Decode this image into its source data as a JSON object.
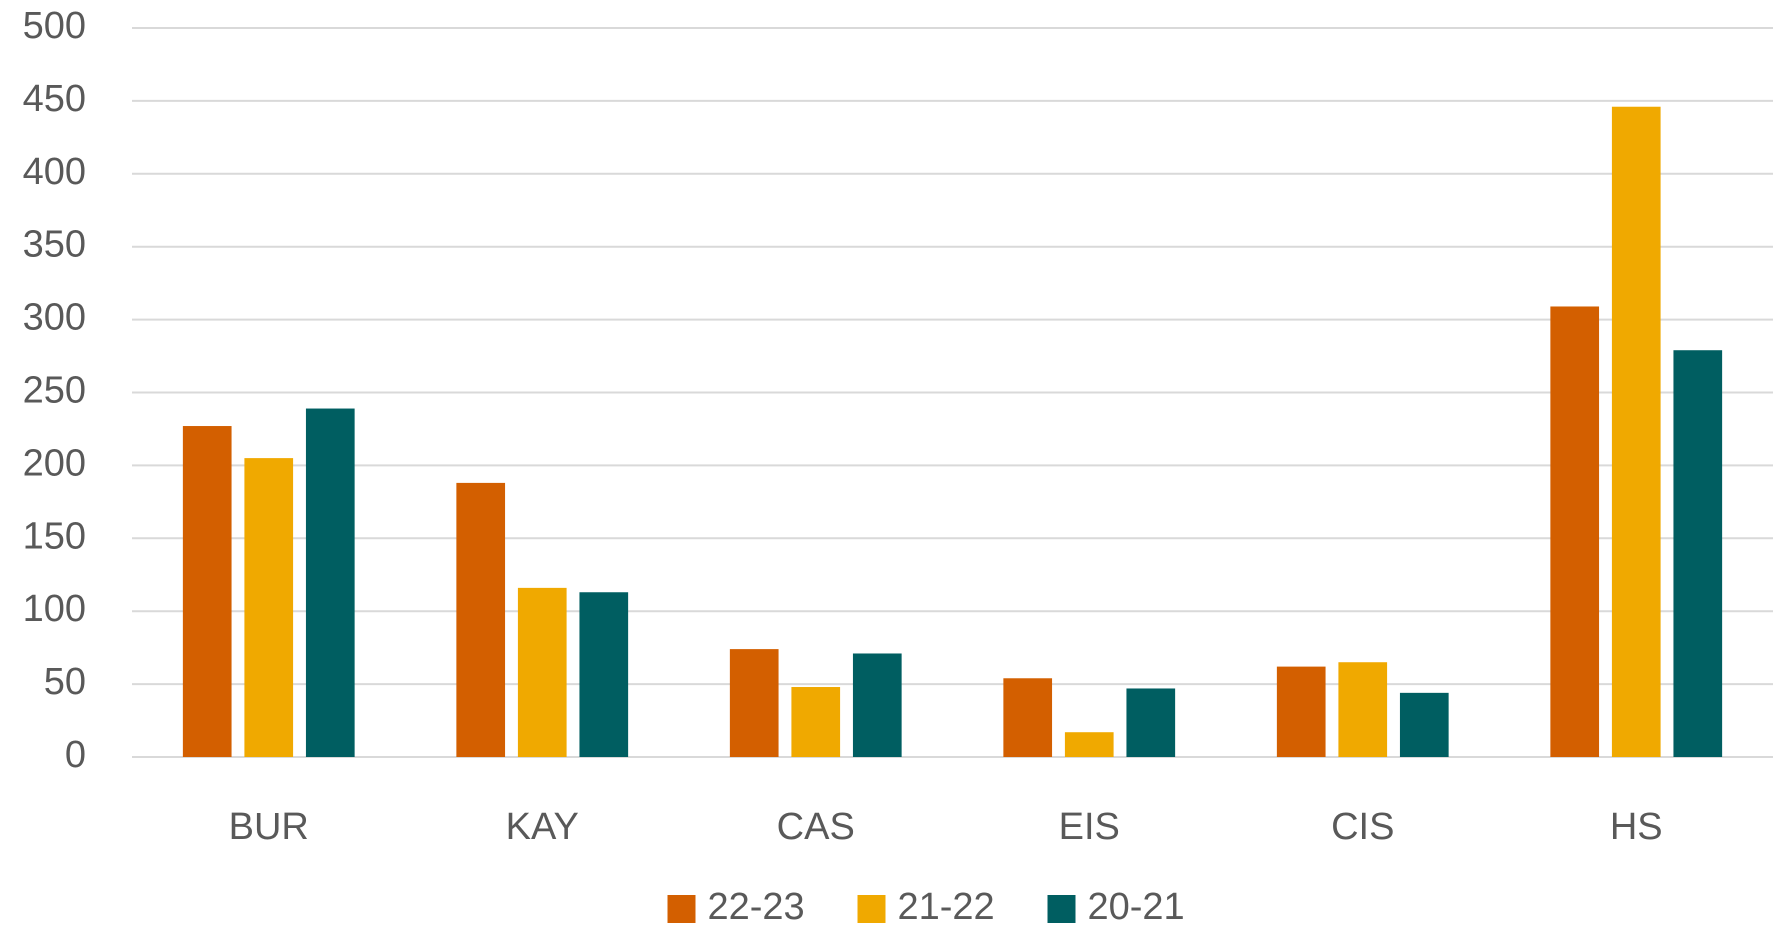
{
  "chart_data": {
    "type": "bar",
    "categories": [
      "BUR",
      "KAY",
      "CAS",
      "EIS",
      "CIS",
      "HS"
    ],
    "series": [
      {
        "name": "22-23",
        "color": "#d35f00",
        "values": [
          227,
          188,
          74,
          54,
          62,
          309
        ]
      },
      {
        "name": "21-22",
        "color": "#f0a900",
        "values": [
          205,
          116,
          48,
          17,
          65,
          446
        ]
      },
      {
        "name": "20-21",
        "color": "#005e61",
        "values": [
          239,
          113,
          71,
          47,
          44,
          279
        ]
      }
    ],
    "ylim": [
      0,
      500
    ],
    "yticks": [
      0,
      50,
      100,
      150,
      200,
      250,
      300,
      350,
      400,
      450,
      500
    ],
    "grid": true,
    "legend": "bottom"
  }
}
